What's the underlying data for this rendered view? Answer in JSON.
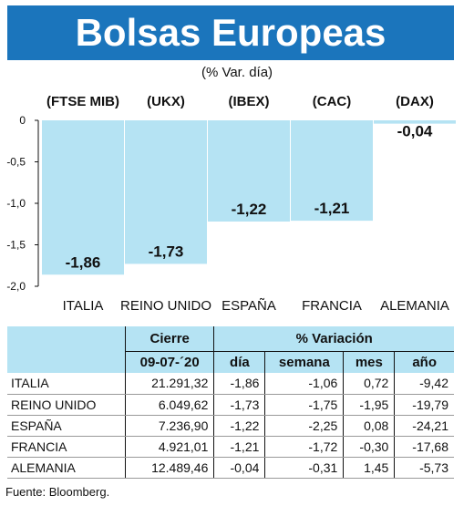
{
  "header": {
    "title": "Bolsas Europeas",
    "subtitle": "(% Var. día)"
  },
  "chart_data": {
    "type": "bar",
    "title": "Bolsas Europeas",
    "subtitle": "(% Var. día)",
    "categories": [
      "ITALIA",
      "REINO UNIDO",
      "ESPAÑA",
      "FRANCIA",
      "ALEMANIA"
    ],
    "index_labels": [
      "(FTSE MIB)",
      "(UKX)",
      "(IBEX)",
      "(CAC)",
      "(DAX)"
    ],
    "values": [
      -1.86,
      -1.73,
      -1.22,
      -1.21,
      -0.04
    ],
    "value_labels": [
      "-1,86",
      "-1,73",
      "-1,22",
      "-1,21",
      "-0,04"
    ],
    "y_ticks": [
      "0",
      "-0,5",
      "-1,0",
      "-1,5",
      "-2,0"
    ],
    "y_tick_values": [
      0,
      -0.5,
      -1.0,
      -1.5,
      -2.0
    ],
    "ylim": [
      -2.0,
      0
    ],
    "bar_color": "#b5e3f3",
    "grid": false
  },
  "table": {
    "header_cierre": "Cierre",
    "header_variacion": "% Variación",
    "date": "09-07-´20",
    "columns": [
      "día",
      "semana",
      "mes",
      "año"
    ],
    "rows": [
      {
        "country": "ITALIA",
        "cierre": "21.291,32",
        "dia": "-1,86",
        "semana": "-1,06",
        "mes": "0,72",
        "ano": "-9,42"
      },
      {
        "country": "REINO UNIDO",
        "cierre": "6.049,62",
        "dia": "-1,73",
        "semana": "-1,75",
        "mes": "-1,95",
        "ano": "-19,79"
      },
      {
        "country": "ESPAÑA",
        "cierre": "7.236,90",
        "dia": "-1,22",
        "semana": "-2,25",
        "mes": "0,08",
        "ano": "-24,21"
      },
      {
        "country": "FRANCIA",
        "cierre": "4.921,01",
        "dia": "-1,21",
        "semana": "-1,72",
        "mes": "-0,30",
        "ano": "-17,68"
      },
      {
        "country": "ALEMANIA",
        "cierre": "12.489,46",
        "dia": "-0,04",
        "semana": "-0,31",
        "mes": "1,45",
        "ano": "-5,73"
      }
    ]
  },
  "source": "Fuente: Bloomberg.",
  "colors": {
    "title_bg": "#1b75bc",
    "bar": "#b5e3f3",
    "table_header": "#b5e3f3"
  }
}
